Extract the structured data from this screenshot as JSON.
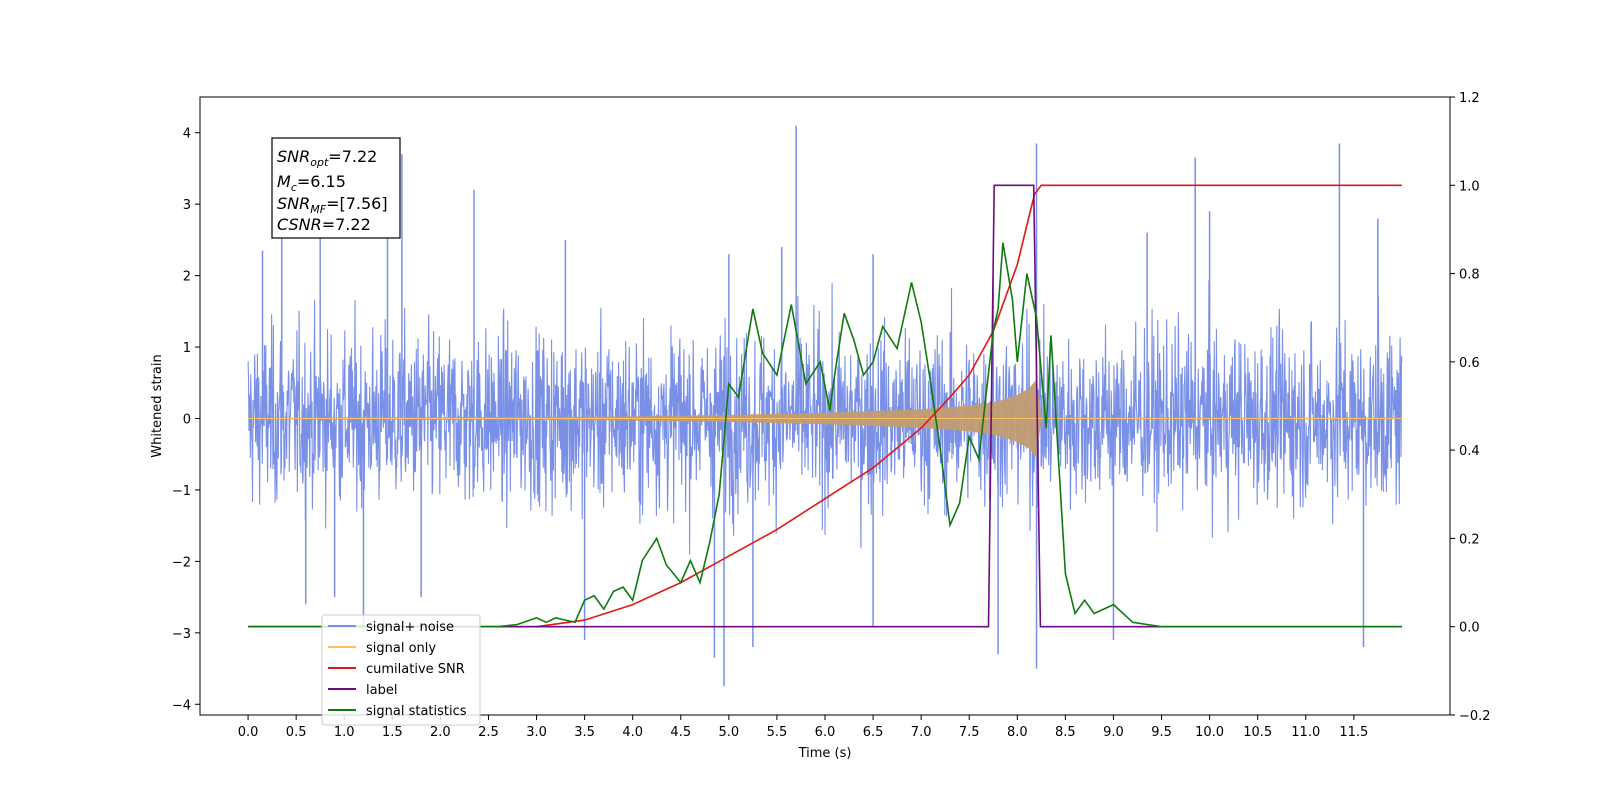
{
  "chart_data": {
    "type": "line",
    "xlabel": "Time (s)",
    "ylabel_left": "Whitened strain",
    "ylabel_right": "",
    "xlim": [
      -0.5,
      12.5
    ],
    "ylim_left": [
      -4.15,
      4.5
    ],
    "ylim_right": [
      -0.2,
      1.2
    ],
    "grid": false,
    "legend_position": "lower-left",
    "x_ticks": [
      0.0,
      0.5,
      1.0,
      1.5,
      2.0,
      2.5,
      3.0,
      3.5,
      4.0,
      4.5,
      5.0,
      5.5,
      6.0,
      6.5,
      7.0,
      7.5,
      8.0,
      8.5,
      9.0,
      9.5,
      10.0,
      10.5,
      11.0,
      11.5
    ],
    "x_tick_labels": [
      "0.0",
      "0.5",
      "1.0",
      "1.5",
      "2.0",
      "2.5",
      "3.0",
      "3.5",
      "4.0",
      "4.5",
      "5.0",
      "5.5",
      "6.0",
      "6.5",
      "7.0",
      "7.5",
      "8.0",
      "8.5",
      "9.0",
      "9.5",
      "10.0",
      "10.5",
      "11.0",
      "11.5"
    ],
    "y_left_ticks": [
      -4,
      -3,
      -2,
      -1,
      0,
      1,
      2,
      3,
      4
    ],
    "y_left_tick_labels": [
      "−4",
      "−3",
      "−2",
      "−1",
      "0",
      "1",
      "2",
      "3",
      "4"
    ],
    "y_right_ticks": [
      -0.2,
      0.0,
      0.2,
      0.4,
      0.6,
      0.8,
      1.0,
      1.2
    ],
    "y_right_tick_labels": [
      "−0.2",
      "0.0",
      "0.2",
      "0.4",
      "0.6",
      "0.8",
      "1.0",
      "1.2"
    ],
    "annotation": {
      "snr_opt": "7.22",
      "mc": "6.15",
      "snr_mf": "[7.56]",
      "csnr": "7.22"
    },
    "series": [
      {
        "name": "signal+ noise",
        "axis": "left",
        "color": "#7990e6",
        "noise_band": {
          "x_start": 0.0,
          "x_end": 12.0,
          "typical_low": -1.5,
          "typical_high": 1.5
        },
        "spikes_up": [
          [
            0.15,
            2.35
          ],
          [
            0.35,
            2.8
          ],
          [
            0.75,
            2.6
          ],
          [
            1.45,
            3.3
          ],
          [
            1.6,
            3.7
          ],
          [
            2.35,
            3.2
          ],
          [
            3.3,
            2.5
          ],
          [
            5.0,
            2.3
          ],
          [
            5.55,
            2.4
          ],
          [
            5.7,
            4.1
          ],
          [
            6.5,
            2.3
          ],
          [
            7.75,
            2.0
          ],
          [
            8.2,
            3.85
          ],
          [
            9.35,
            2.6
          ],
          [
            9.85,
            3.65
          ],
          [
            10.0,
            2.9
          ],
          [
            11.35,
            3.85
          ],
          [
            11.75,
            2.8
          ]
        ],
        "spikes_down": [
          [
            0.6,
            -2.6
          ],
          [
            0.9,
            -2.5
          ],
          [
            1.2,
            -3.0
          ],
          [
            1.8,
            -2.5
          ],
          [
            3.5,
            -3.1
          ],
          [
            4.85,
            -3.35
          ],
          [
            4.95,
            -3.75
          ],
          [
            5.25,
            -3.2
          ],
          [
            6.5,
            -2.9
          ],
          [
            7.8,
            -3.3
          ],
          [
            8.2,
            -3.5
          ],
          [
            9.0,
            -3.1
          ],
          [
            11.6,
            -3.2
          ]
        ]
      },
      {
        "name": "signal only",
        "axis": "left",
        "color": "#ffbf5a",
        "envelope": [
          [
            0.0,
            0.01
          ],
          [
            3.0,
            0.02
          ],
          [
            4.0,
            0.03
          ],
          [
            5.0,
            0.05
          ],
          [
            6.0,
            0.08
          ],
          [
            7.0,
            0.13
          ],
          [
            7.5,
            0.18
          ],
          [
            7.8,
            0.24
          ],
          [
            8.0,
            0.33
          ],
          [
            8.12,
            0.42
          ],
          [
            8.2,
            0.55
          ],
          [
            8.25,
            0.01
          ],
          [
            12.0,
            0.01
          ]
        ]
      },
      {
        "name": "cumilative SNR",
        "axis": "right",
        "color": "#e01818",
        "points": [
          [
            0.0,
            0.0
          ],
          [
            2.5,
            0.0
          ],
          [
            3.0,
            0.0
          ],
          [
            3.5,
            0.015
          ],
          [
            4.0,
            0.05
          ],
          [
            4.5,
            0.1
          ],
          [
            5.0,
            0.16
          ],
          [
            5.5,
            0.22
          ],
          [
            6.0,
            0.29
          ],
          [
            6.5,
            0.36
          ],
          [
            7.0,
            0.45
          ],
          [
            7.3,
            0.52
          ],
          [
            7.5,
            0.57
          ],
          [
            7.75,
            0.67
          ],
          [
            7.9,
            0.76
          ],
          [
            8.0,
            0.82
          ],
          [
            8.1,
            0.91
          ],
          [
            8.18,
            0.98
          ],
          [
            8.25,
            1.0
          ],
          [
            12.0,
            1.0
          ]
        ]
      },
      {
        "name": "label",
        "axis": "right",
        "color": "#6d0c80",
        "points": [
          [
            0.0,
            0.0
          ],
          [
            7.7,
            0.0
          ],
          [
            7.76,
            1.0
          ],
          [
            8.17,
            1.0
          ],
          [
            8.24,
            0.0
          ],
          [
            12.0,
            0.0
          ]
        ]
      },
      {
        "name": "signal statistics",
        "axis": "right",
        "color": "#107a10",
        "points": [
          [
            0.0,
            0.0
          ],
          [
            2.3,
            0.0
          ],
          [
            2.6,
            0.0
          ],
          [
            2.8,
            0.005
          ],
          [
            3.0,
            0.02
          ],
          [
            3.1,
            0.01
          ],
          [
            3.2,
            0.02
          ],
          [
            3.3,
            0.015
          ],
          [
            3.4,
            0.01
          ],
          [
            3.5,
            0.06
          ],
          [
            3.6,
            0.07
          ],
          [
            3.7,
            0.04
          ],
          [
            3.8,
            0.08
          ],
          [
            3.9,
            0.09
          ],
          [
            4.0,
            0.06
          ],
          [
            4.1,
            0.15
          ],
          [
            4.25,
            0.2
          ],
          [
            4.35,
            0.14
          ],
          [
            4.5,
            0.1
          ],
          [
            4.6,
            0.15
          ],
          [
            4.7,
            0.1
          ],
          [
            4.8,
            0.19
          ],
          [
            4.9,
            0.3
          ],
          [
            5.0,
            0.55
          ],
          [
            5.1,
            0.52
          ],
          [
            5.25,
            0.72
          ],
          [
            5.35,
            0.62
          ],
          [
            5.5,
            0.57
          ],
          [
            5.65,
            0.73
          ],
          [
            5.8,
            0.55
          ],
          [
            5.95,
            0.6
          ],
          [
            6.05,
            0.49
          ],
          [
            6.1,
            0.57
          ],
          [
            6.2,
            0.71
          ],
          [
            6.3,
            0.65
          ],
          [
            6.4,
            0.57
          ],
          [
            6.5,
            0.6
          ],
          [
            6.6,
            0.68
          ],
          [
            6.75,
            0.63
          ],
          [
            6.9,
            0.78
          ],
          [
            7.0,
            0.69
          ],
          [
            7.1,
            0.55
          ],
          [
            7.2,
            0.4
          ],
          [
            7.3,
            0.23
          ],
          [
            7.4,
            0.28
          ],
          [
            7.5,
            0.43
          ],
          [
            7.6,
            0.38
          ],
          [
            7.75,
            0.67
          ],
          [
            7.8,
            0.72
          ],
          [
            7.85,
            0.87
          ],
          [
            7.95,
            0.74
          ],
          [
            8.0,
            0.6
          ],
          [
            8.1,
            0.8
          ],
          [
            8.2,
            0.7
          ],
          [
            8.3,
            0.45
          ],
          [
            8.35,
            0.66
          ],
          [
            8.5,
            0.12
          ],
          [
            8.6,
            0.03
          ],
          [
            8.7,
            0.06
          ],
          [
            8.8,
            0.03
          ],
          [
            9.0,
            0.05
          ],
          [
            9.2,
            0.01
          ],
          [
            9.5,
            0.0
          ],
          [
            12.0,
            0.0
          ]
        ]
      }
    ]
  },
  "legend": {
    "items": [
      {
        "label": "signal+ noise",
        "color": "#7990e6"
      },
      {
        "label": "signal only",
        "color": "#ffbf5a"
      },
      {
        "label": "cumilative SNR",
        "color": "#e01818"
      },
      {
        "label": "label",
        "color": "#6d0c80"
      },
      {
        "label": "signal statistics",
        "color": "#107a10"
      }
    ]
  }
}
